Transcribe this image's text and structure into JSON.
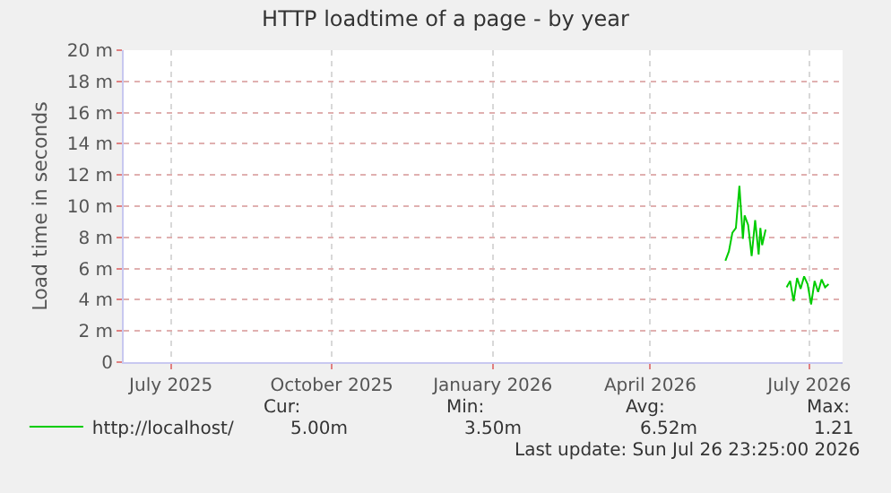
{
  "chart_data": {
    "type": "line",
    "title": "HTTP loadtime of a page - by year",
    "ylabel": "Load time in seconds",
    "xlim": [
      "2025-06-04",
      "2026-07-20"
    ],
    "xticks": [
      {
        "value": "2025-07-01",
        "label": "July 2025"
      },
      {
        "value": "2025-10-01",
        "label": "October 2025"
      },
      {
        "value": "2026-01-01",
        "label": "January 2026"
      },
      {
        "value": "2026-04-01",
        "label": "April 2026"
      },
      {
        "value": "2026-07-01",
        "label": "July 2026"
      }
    ],
    "ylim": [
      0,
      20
    ],
    "yticks": [
      0,
      {
        "value": 2,
        "label": "2 m"
      },
      {
        "value": 4,
        "label": "4 m"
      },
      {
        "value": 6,
        "label": "6 m"
      },
      {
        "value": 8,
        "label": "8 m"
      },
      {
        "value": 10,
        "label": "10 m"
      },
      {
        "value": 12,
        "label": "12 m"
      },
      {
        "value": 14,
        "label": "14 m"
      },
      {
        "value": 16,
        "label": "16 m"
      },
      {
        "value": 18,
        "label": "18 m"
      },
      {
        "value": 20,
        "label": "20 m"
      }
    ],
    "grid": true,
    "legend": "bottom left",
    "series": [
      {
        "name": "http://localhost/",
        "color": "#00cc00",
        "x": [
          "2026-05-14",
          "2026-05-16",
          "2026-05-18",
          "2026-05-20",
          "2026-05-22",
          "2026-05-24",
          "2026-05-25",
          "2026-05-27",
          "2026-05-29",
          "2026-05-31",
          "2026-06-02",
          "2026-06-03",
          "2026-06-04",
          "2026-06-06",
          "2026-06-07",
          "2026-06-18",
          "2026-06-20",
          "2026-06-22",
          "2026-06-24",
          "2026-06-26",
          "2026-06-28",
          "2026-06-30",
          "2026-07-02",
          "2026-07-04",
          "2026-07-06",
          "2026-07-08",
          "2026-07-10",
          "2026-07-12"
        ],
        "values": [
          6.5,
          7.1,
          8.3,
          8.6,
          11.3,
          7.9,
          9.4,
          8.8,
          6.8,
          9.1,
          6.9,
          8.6,
          7.5,
          8.5,
          null,
          4.8,
          5.2,
          3.9,
          5.4,
          4.7,
          5.5,
          5.0,
          3.7,
          5.2,
          4.5,
          5.3,
          4.8,
          5.0
        ]
      }
    ],
    "annotations": [
      "Cur:",
      "Min:",
      "Avg:",
      "Max:",
      "5.00m",
      "3.50m",
      "6.52m",
      "1.21",
      "Last update: Sun Jul 26 23:25:00 2026"
    ]
  }
}
